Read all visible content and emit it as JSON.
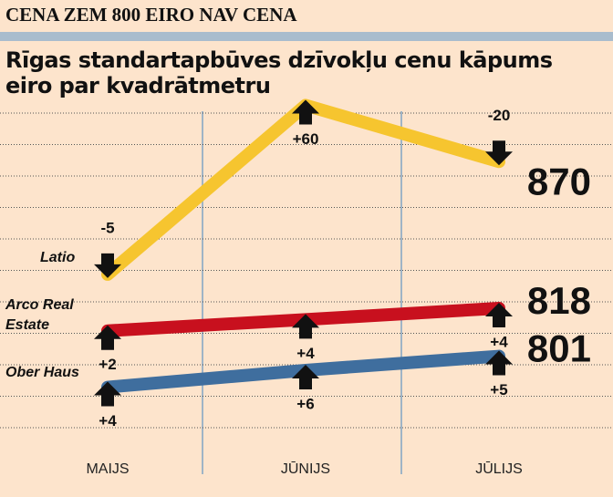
{
  "chart_data": {
    "type": "line",
    "header": "CENA ZEM 800 EIRO NAV CENA",
    "title": "Rīgas standartapbūves dzīvokļu cenu kāpums eiro par kvadrātmetru",
    "categories": [
      "MAIJS",
      "JŪNIJS",
      "JŪLIJS"
    ],
    "series": [
      {
        "name": "Latio",
        "color": "#f6c52f",
        "values": [
          830,
          890,
          870
        ],
        "change_labels": [
          "-5",
          "+60",
          "-20"
        ]
      },
      {
        "name": "Arco Real Estate",
        "color": "#c8101e",
        "values": [
          810,
          814,
          818
        ],
        "change_labels": [
          "+2",
          "+4",
          "+4"
        ]
      },
      {
        "name": "Ober Haus",
        "color": "#3f6e9e",
        "values": [
          790,
          796,
          801
        ],
        "change_labels": [
          "+4",
          "+6",
          "+5"
        ]
      }
    ],
    "ylim": [
      785,
      895
    ]
  }
}
